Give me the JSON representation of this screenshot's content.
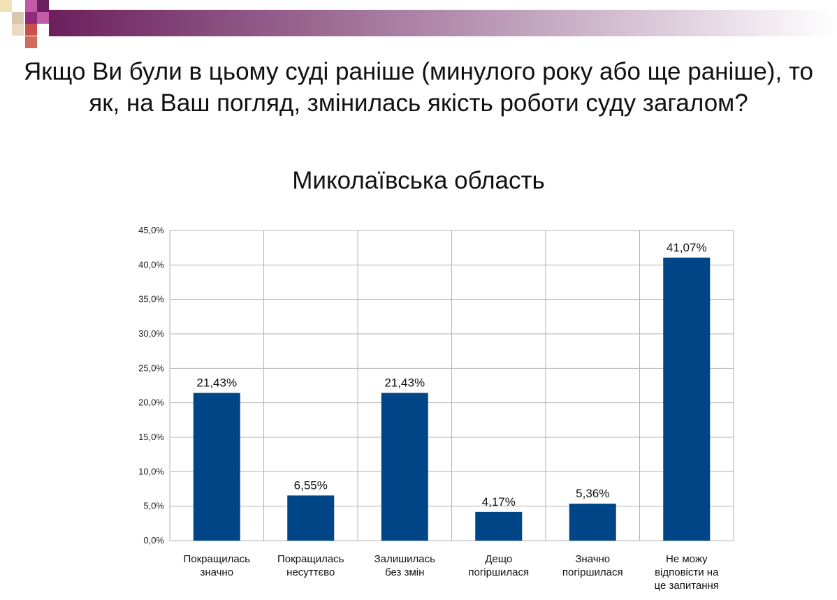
{
  "slide": {
    "title": "Якщо Ви були в цьому суді раніше (минулого року або ще раніше), то як, на Ваш погляд, змінилась якість роботи суду загалом?",
    "subtitle": "Миколаївська область"
  },
  "chart_data": {
    "type": "bar",
    "categories": [
      [
        "Покращилась",
        "значно"
      ],
      [
        "Покращилась",
        "несуттєво"
      ],
      [
        "Залишилась",
        "без змін"
      ],
      [
        "Дещо",
        "погіршилася"
      ],
      [
        "Значно",
        "погіршилася"
      ],
      [
        "Не можу",
        "відповісти на",
        "це запитання"
      ]
    ],
    "values": [
      21.43,
      6.55,
      21.43,
      4.17,
      5.36,
      41.07
    ],
    "value_labels": [
      "21,43%",
      "6,55%",
      "21,43%",
      "4,17%",
      "5,36%",
      "41,07%"
    ],
    "yticks": [
      "0,0%",
      "5,0%",
      "10,0%",
      "15,0%",
      "20,0%",
      "25,0%",
      "30,0%",
      "35,0%",
      "40,0%",
      "45,0%"
    ],
    "ylim": [
      0,
      45
    ],
    "ystep": 5,
    "grid": true,
    "legend": "none",
    "bar_color": "#004586"
  }
}
